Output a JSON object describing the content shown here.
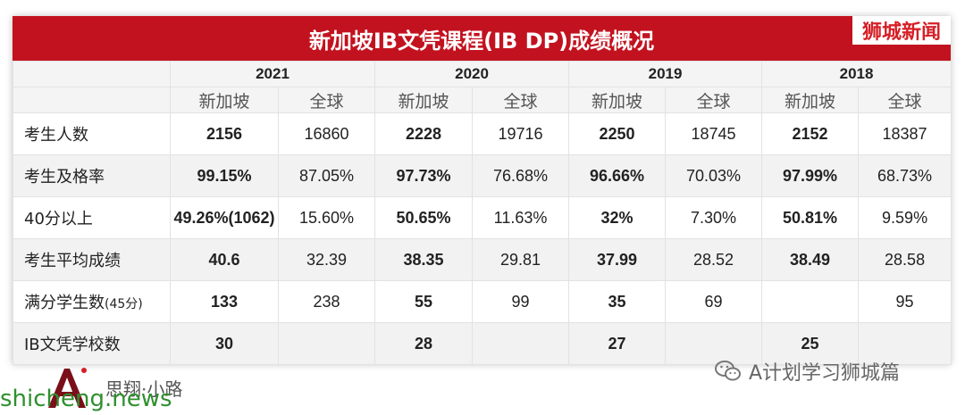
{
  "title": "新加坡IB文凭课程(IB DP)成绩概况",
  "brand": "狮城新闻",
  "years": [
    "2021",
    "2020",
    "2019",
    "2018"
  ],
  "sub_headers": {
    "sg": "新加坡",
    "global": "全球"
  },
  "rows": [
    {
      "label": "考生人数",
      "label_suffix": "",
      "cells": [
        "2156",
        "16860",
        "2228",
        "19716",
        "2250",
        "18745",
        "2152",
        "18387"
      ]
    },
    {
      "label": "考生及格率",
      "label_suffix": "",
      "cells": [
        "99.15%",
        "87.05%",
        "97.73%",
        "76.68%",
        "96.66%",
        "70.03%",
        "97.99%",
        "68.73%"
      ]
    },
    {
      "label": "40分以上",
      "label_suffix": "",
      "cells": [
        "49.26%(1062)",
        "15.60%",
        "50.65%",
        "11.63%",
        "32%",
        "7.30%",
        "50.81%",
        "9.59%"
      ]
    },
    {
      "label": "考生平均成绩",
      "label_suffix": "",
      "cells": [
        "40.6",
        "32.39",
        "38.35",
        "29.81",
        "37.99",
        "28.52",
        "38.49",
        "28.58"
      ]
    },
    {
      "label": "满分学生数",
      "label_suffix": "(45分)",
      "cells": [
        "133",
        "238",
        "55",
        "99",
        "35",
        "69",
        "",
        "95"
      ]
    },
    {
      "label": "IB文凭学校数",
      "label_suffix": "",
      "cells": [
        "30",
        "",
        "28",
        "",
        "27",
        "",
        "25",
        ""
      ]
    }
  ],
  "footer": {
    "watermark": "shicheng.news",
    "signature": "思翔·小路",
    "wechat_account": "A计划学习狮城篇"
  },
  "colors": {
    "title_bg": "#c3121f",
    "brand_text": "#d61f26",
    "watermark": "#2f8f2f"
  }
}
